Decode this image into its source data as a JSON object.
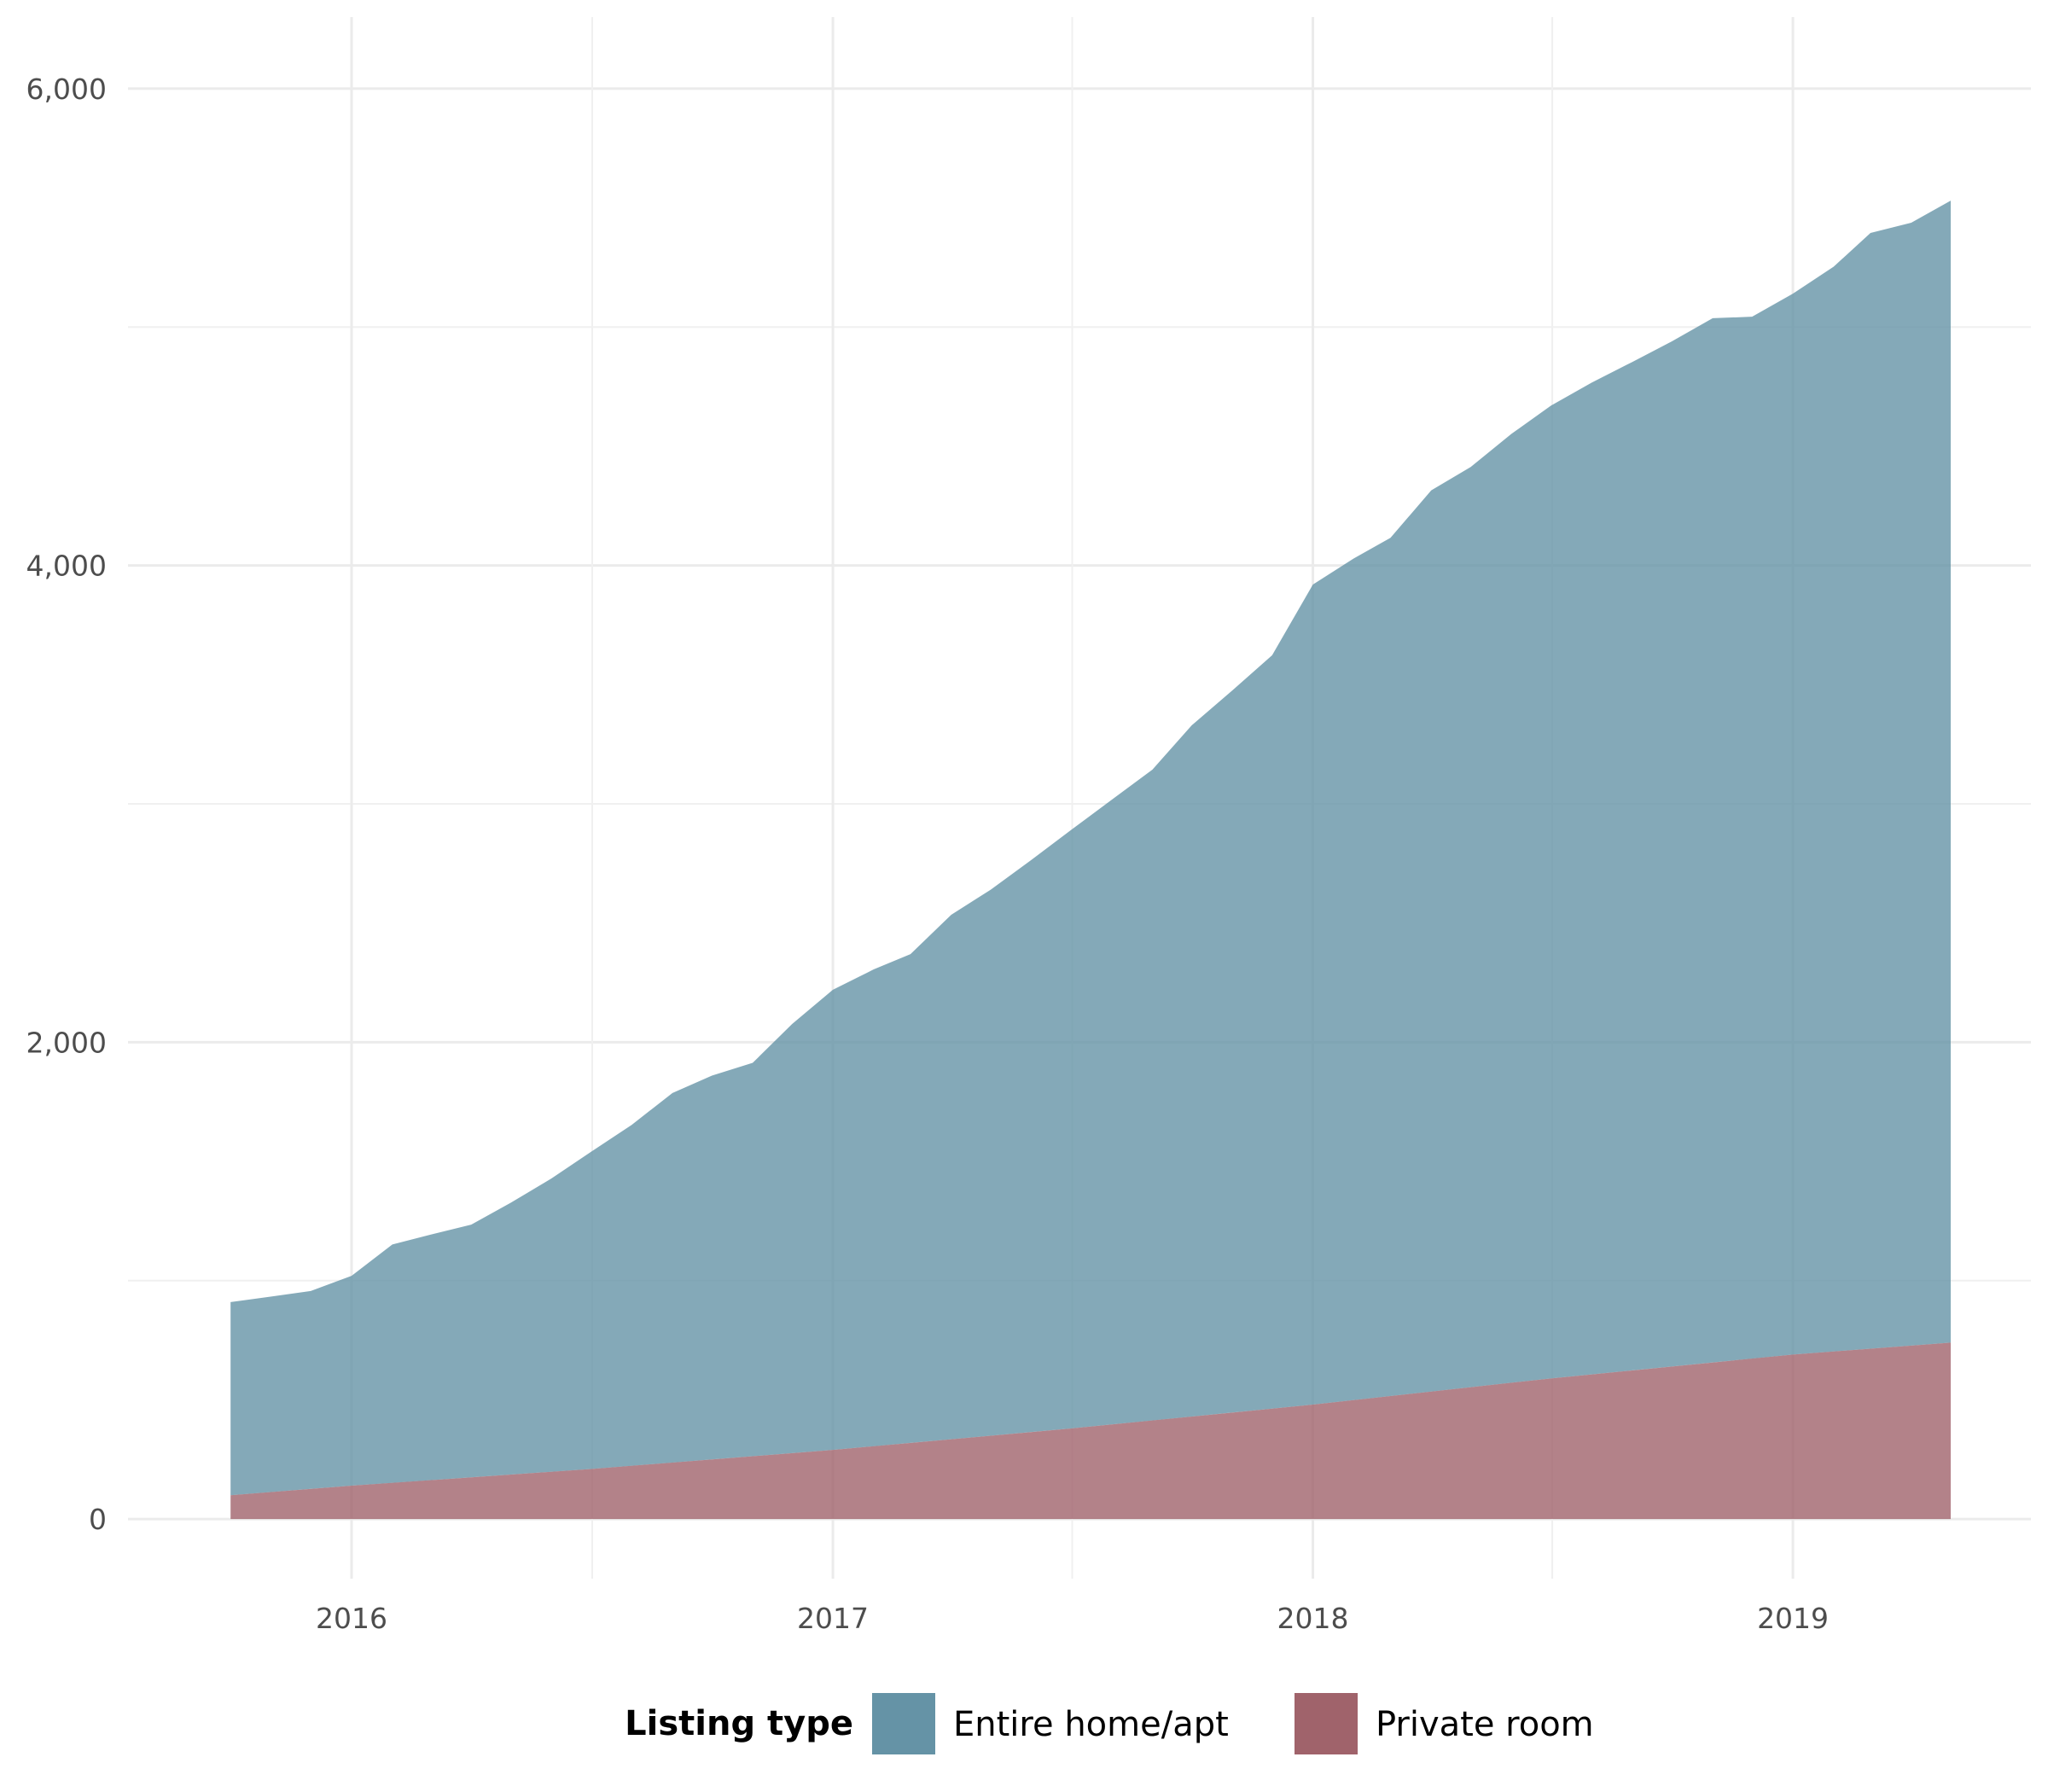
{
  "chart_data": {
    "type": "area",
    "stacked": true,
    "title": "",
    "xlabel": "",
    "ylabel": "",
    "x_axis": {
      "type": "date",
      "range": [
        "2015-07-15",
        "2019-07-01"
      ],
      "ticks": [
        {
          "value": "2016-01-01",
          "label": "2016"
        },
        {
          "value": "2017-01-01",
          "label": "2017"
        },
        {
          "value": "2018-01-01",
          "label": "2018"
        },
        {
          "value": "2019-01-01",
          "label": "2019"
        }
      ]
    },
    "y_axis": {
      "range": [
        -250,
        6300
      ],
      "ticks": [
        {
          "value": 0,
          "label": "0"
        },
        {
          "value": 2000,
          "label": "2,000"
        },
        {
          "value": 4000,
          "label": "4,000"
        },
        {
          "value": 6000,
          "label": "6,000"
        }
      ],
      "minor_ticks": [
        1000,
        3000,
        5000
      ]
    },
    "grid": true,
    "legend": {
      "title": "Listing type",
      "position": "bottom"
    },
    "series": [
      {
        "name": "Private room",
        "color": "#a0636b",
        "x": [
          "2015-10-01",
          "2016-01-01",
          "2016-07-01",
          "2017-01-01",
          "2017-07-01",
          "2018-01-01",
          "2018-07-01",
          "2019-01-01",
          "2019-05-01"
        ],
        "values": [
          100,
          140,
          210,
          290,
          380,
          480,
          590,
          690,
          740
        ]
      },
      {
        "name": "Entire home/apt",
        "color": "#6593a6",
        "x": [
          "2015-10-01",
          "2015-11-01",
          "2015-12-01",
          "2016-01-01",
          "2016-02-01",
          "2016-03-01",
          "2016-04-01",
          "2016-05-01",
          "2016-06-01",
          "2016-07-01",
          "2016-08-01",
          "2016-09-01",
          "2016-10-01",
          "2016-11-01",
          "2016-12-01",
          "2017-01-01",
          "2017-02-01",
          "2017-03-01",
          "2017-04-01",
          "2017-05-01",
          "2017-06-01",
          "2017-07-01",
          "2017-08-01",
          "2017-09-01",
          "2017-10-01",
          "2017-11-01",
          "2017-12-01",
          "2018-01-01",
          "2018-02-01",
          "2018-03-01",
          "2018-04-01",
          "2018-05-01",
          "2018-06-01",
          "2018-07-01",
          "2018-08-01",
          "2018-09-01",
          "2018-10-01",
          "2018-11-01",
          "2018-12-01",
          "2019-01-01",
          "2019-02-01",
          "2019-03-01",
          "2019-04-01",
          "2019-05-01"
        ],
        "values": [
          810,
          820,
          830,
          880,
          1000,
          1030,
          1060,
          1140,
          1230,
          1330,
          1430,
          1550,
          1610,
          1650,
          1800,
          1930,
          2000,
          2050,
          2200,
          2290,
          2400,
          2510,
          2620,
          2730,
          2900,
          3030,
          3160,
          3440,
          3530,
          3600,
          3780,
          3860,
          3980,
          4080,
          4160,
          4230,
          4300,
          4380,
          4370,
          4450,
          4550,
          4680,
          4710,
          4790
        ]
      }
    ]
  }
}
